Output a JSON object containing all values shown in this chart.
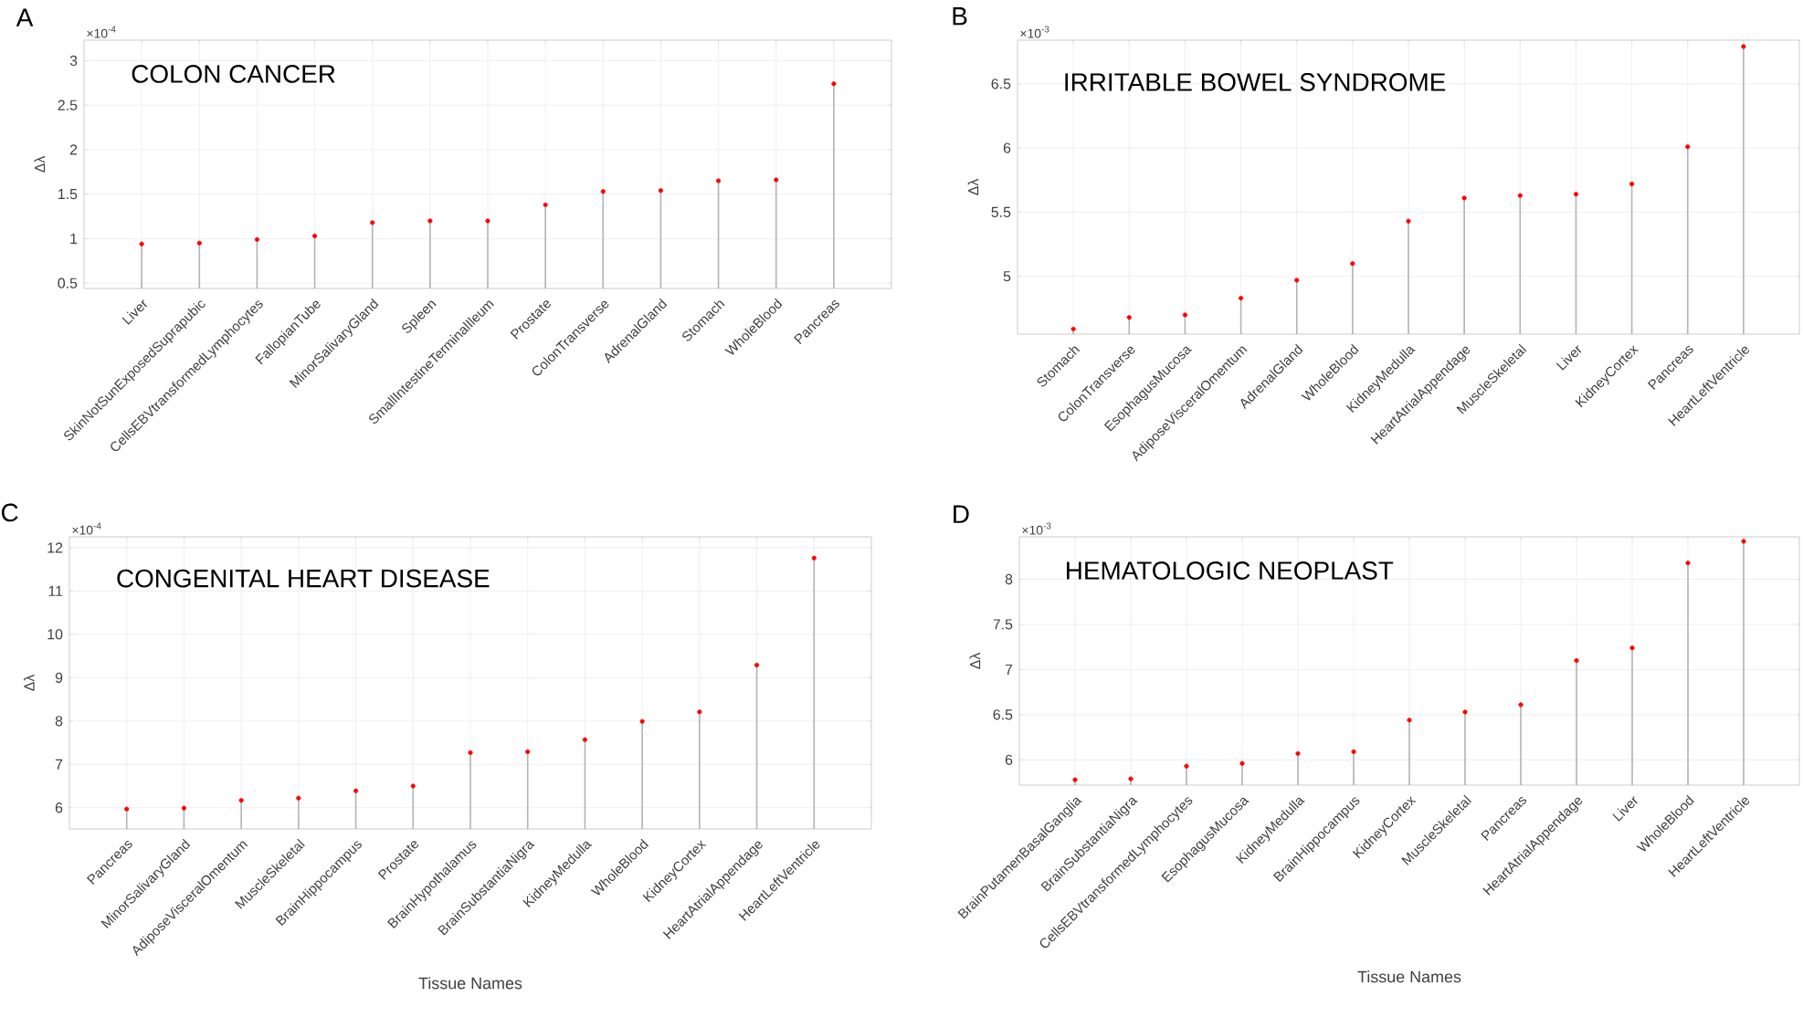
{
  "chart_data": [
    {
      "type": "lollipop",
      "title": "COLON CANCER",
      "ylabel": "Δλ",
      "annotations": [
        "A",
        "×10$^{-4}$"
      ],
      "color": "#ff0000",
      "marker": "circle",
      "grid": true,
      "categories": [
        "Liver",
        "SkinNotSunExposedSuprapubic",
        "CellsEBVtransformedLymphocytes",
        "FallopianTube",
        "MinorSalivaryGland",
        "Spleen",
        "SmallIntestineTerminalIleum",
        "Prostate",
        "ColonTransverse",
        "AdrenalGland",
        "Stomach",
        "WholeBlood",
        "Pancreas"
      ],
      "values": [
        0.94,
        0.95,
        0.99,
        1.03,
        1.18,
        1.2,
        1.2,
        1.38,
        1.53,
        1.54,
        1.65,
        1.66,
        2.74
      ],
      "ylim": [
        0.44,
        3.23
      ],
      "yticks": [
        0.5,
        1,
        1.5,
        2,
        2.5,
        3
      ]
    },
    {
      "type": "lollipop",
      "title": "IRRITABLE BOWEL SYNDROME",
      "ylabel": "Δλ",
      "annotations": [
        "B",
        "×10$^{-3}$"
      ],
      "color": "#ff0000",
      "marker": "circle",
      "grid": true,
      "categories": [
        "Stomach",
        "ColonTransverse",
        "EsophagusMucosa",
        "AdiposeVisceralOmentum",
        "AdrenalGland",
        "WholeBlood",
        "KidneyMedulla",
        "HeartAtrialAppendage",
        "MuscleSkeletal",
        "Liver",
        "KidneyCortex",
        "Pancreas",
        "HeartLeftVentricle"
      ],
      "values": [
        4.59,
        4.68,
        4.7,
        4.83,
        4.97,
        5.1,
        5.43,
        5.61,
        5.63,
        5.64,
        5.72,
        6.01,
        6.79
      ],
      "ylim": [
        4.55,
        6.84
      ],
      "yticks": [
        5,
        5.5,
        6,
        6.5
      ]
    },
    {
      "type": "lollipop",
      "title": "CONGENITAL HEART DISEASE",
      "ylabel": "Δλ",
      "xlabel": "Tissue Names",
      "annotations": [
        "C",
        "×10$^{-4}$"
      ],
      "color": "#ff0000",
      "marker": "circle",
      "grid": true,
      "categories": [
        "Pancreas",
        "MinorSalivaryGland",
        "AdiposeVisceralOmentum",
        "MuscleSkeletal",
        "BrainHippocampus",
        "Prostate",
        "BrainHypothalamus",
        "BrainSubstantiaNigra",
        "KidneyMedulla",
        "WholeBlood",
        "KidneyCortex",
        "HeartAtrialAppendage",
        "HeartLeftVentricle"
      ],
      "values": [
        5.97,
        5.99,
        6.17,
        6.22,
        6.39,
        6.5,
        7.27,
        7.29,
        7.57,
        7.99,
        8.21,
        9.29,
        11.76
      ],
      "ylim": [
        5.51,
        12.25
      ],
      "yticks": [
        6,
        7,
        8,
        9,
        10,
        11,
        12
      ]
    },
    {
      "type": "lollipop",
      "title": "HEMATOLOGIC NEOPLAST",
      "ylabel": "Δλ",
      "xlabel": "Tissue Names",
      "annotations": [
        "D",
        "×10$^{-3}$"
      ],
      "color": "#ff0000",
      "marker": "circle",
      "grid": true,
      "categories": [
        "BrainPutamenBasalGanglia",
        "BrainSubstantiaNigra",
        "CellsEBVtransformedLymphocytes",
        "EsophagusMucosa",
        "KidneyMedulla",
        "BrainHippocampus",
        "KidneyCortex",
        "MuscleSkeletal",
        "Pancreas",
        "HeartAtrialAppendage",
        "Liver",
        "WholeBlood",
        "HeartLeftVentricle"
      ],
      "values": [
        5.78,
        5.79,
        5.93,
        5.96,
        6.07,
        6.09,
        6.44,
        6.53,
        6.61,
        7.1,
        7.24,
        8.18,
        8.42
      ],
      "ylim": [
        5.72,
        8.47
      ],
      "yticks": [
        6,
        6.5,
        7,
        7.5,
        8
      ]
    }
  ]
}
